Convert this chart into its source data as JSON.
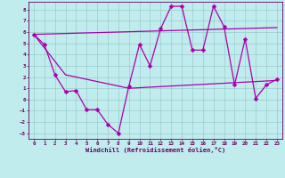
{
  "xlabel": "Windchill (Refroidissement éolien,°C)",
  "xlim": [
    -0.5,
    23.5
  ],
  "ylim": [
    -3.5,
    8.7
  ],
  "yticks": [
    -3,
    -2,
    -1,
    0,
    1,
    2,
    3,
    4,
    5,
    6,
    7,
    8
  ],
  "xticks": [
    0,
    1,
    2,
    3,
    4,
    5,
    6,
    7,
    8,
    9,
    10,
    11,
    12,
    13,
    14,
    15,
    16,
    17,
    18,
    19,
    20,
    21,
    22,
    23
  ],
  "bg_color": "#c0ecee",
  "grid_color": "#99cccc",
  "line_color": "#aa00aa",
  "series": [
    {
      "x": [
        0,
        1,
        2,
        3,
        4,
        5,
        6,
        7,
        8,
        9,
        10,
        11,
        12,
        13,
        14,
        15,
        16,
        17,
        18,
        19,
        20,
        21,
        22,
        23
      ],
      "y": [
        5.8,
        4.9,
        2.2,
        0.7,
        0.8,
        -0.9,
        -0.9,
        -2.2,
        -3.0,
        1.2,
        4.9,
        3.0,
        6.3,
        8.3,
        8.3,
        4.4,
        4.4,
        8.3,
        6.5,
        1.3,
        5.4,
        0.1,
        1.3,
        1.8
      ],
      "marker": "D",
      "markersize": 2.5,
      "linewidth": 0.9
    },
    {
      "x": [
        0,
        23
      ],
      "y": [
        5.8,
        6.4
      ],
      "marker": null,
      "markersize": 0,
      "linewidth": 0.9
    },
    {
      "x": [
        0,
        3,
        9,
        23
      ],
      "y": [
        5.8,
        2.2,
        1.0,
        1.7
      ],
      "marker": null,
      "markersize": 0,
      "linewidth": 0.9
    }
  ]
}
